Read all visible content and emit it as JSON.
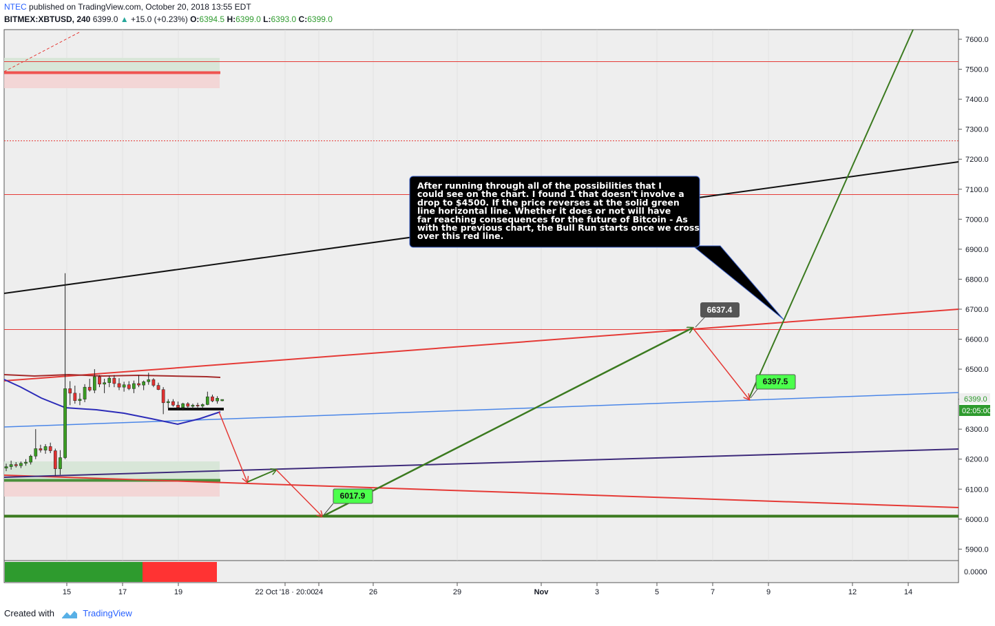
{
  "header": {
    "author": "NTEC",
    "published": "published on TradingView.com, October 20, 2018 13:55 EDT",
    "symbol": "BITMEX:XBTUSD, 240",
    "last": "6399.0",
    "change": "+15.0 (+0.23%)",
    "o_label": "O:",
    "o_value": "6394.5",
    "h_label": "H:",
    "h_value": "6399.0",
    "l_label": "L:",
    "l_value": "6393.0",
    "c_label": "C:",
    "c_value": "6399.0"
  },
  "footer": {
    "created_with": "Created with",
    "brand": "TradingView"
  },
  "chart_data": {
    "type": "candlestick",
    "price_axis": {
      "ticks": [
        7600,
        7500,
        7400,
        7300,
        7200,
        7100,
        7000,
        6900,
        6800,
        6700,
        6600,
        6500,
        6400,
        6300,
        6200,
        6100,
        6000,
        5900
      ],
      "tick_labels": [
        "7600.0",
        "7500.0",
        "7400.0",
        "7300.0",
        "7200.0",
        "7100.0",
        "7000.0",
        "6900.0",
        "6800.0",
        "6700.0",
        "6600.0",
        "6500.0",
        "6400.0",
        "6300.0",
        "6200.0",
        "6100.0",
        "6000.0",
        "5900.0"
      ],
      "range": [
        5860,
        7620
      ],
      "last_price_label": "6399.0",
      "countdown_label": "02:05:00",
      "indicator_label": "0.0000"
    },
    "time_axis": {
      "labels": [
        "15",
        "17",
        "19",
        "22 Oct '18 · 20:00",
        "24",
        "26",
        "29",
        "Nov",
        "3",
        "5",
        "7",
        "9",
        "12",
        "14"
      ]
    },
    "candles": [
      {
        "o": 6170,
        "h": 6185,
        "l": 6160,
        "c": 6175
      },
      {
        "o": 6175,
        "h": 6195,
        "l": 6165,
        "c": 6182
      },
      {
        "o": 6182,
        "h": 6190,
        "l": 6172,
        "c": 6178
      },
      {
        "o": 6178,
        "h": 6192,
        "l": 6170,
        "c": 6186
      },
      {
        "o": 6186,
        "h": 6200,
        "l": 6178,
        "c": 6190
      },
      {
        "o": 6190,
        "h": 6215,
        "l": 6182,
        "c": 6210
      },
      {
        "o": 6210,
        "h": 6300,
        "l": 6200,
        "c": 6235
      },
      {
        "o": 6235,
        "h": 6248,
        "l": 6222,
        "c": 6230
      },
      {
        "o": 6230,
        "h": 6250,
        "l": 6218,
        "c": 6242
      },
      {
        "o": 6242,
        "h": 6255,
        "l": 6220,
        "c": 6228
      },
      {
        "o": 6228,
        "h": 6235,
        "l": 6145,
        "c": 6168
      },
      {
        "o": 6168,
        "h": 6230,
        "l": 6148,
        "c": 6205
      },
      {
        "o": 6205,
        "h": 6820,
        "l": 6200,
        "c": 6435
      },
      {
        "o": 6435,
        "h": 6460,
        "l": 6380,
        "c": 6420
      },
      {
        "o": 6420,
        "h": 6445,
        "l": 6385,
        "c": 6395
      },
      {
        "o": 6395,
        "h": 6420,
        "l": 6380,
        "c": 6400
      },
      {
        "o": 6400,
        "h": 6450,
        "l": 6390,
        "c": 6440
      },
      {
        "o": 6440,
        "h": 6468,
        "l": 6425,
        "c": 6430
      },
      {
        "o": 6430,
        "h": 6500,
        "l": 6420,
        "c": 6475
      },
      {
        "o": 6475,
        "h": 6480,
        "l": 6440,
        "c": 6450
      },
      {
        "o": 6450,
        "h": 6468,
        "l": 6420,
        "c": 6455
      },
      {
        "o": 6455,
        "h": 6478,
        "l": 6440,
        "c": 6470
      },
      {
        "o": 6470,
        "h": 6480,
        "l": 6440,
        "c": 6452
      },
      {
        "o": 6452,
        "h": 6470,
        "l": 6430,
        "c": 6440
      },
      {
        "o": 6440,
        "h": 6458,
        "l": 6425,
        "c": 6448
      },
      {
        "o": 6448,
        "h": 6460,
        "l": 6430,
        "c": 6435
      },
      {
        "o": 6435,
        "h": 6462,
        "l": 6420,
        "c": 6452
      },
      {
        "o": 6452,
        "h": 6480,
        "l": 6440,
        "c": 6447
      },
      {
        "o": 6447,
        "h": 6462,
        "l": 6430,
        "c": 6458
      },
      {
        "o": 6458,
        "h": 6488,
        "l": 6448,
        "c": 6465
      },
      {
        "o": 6465,
        "h": 6470,
        "l": 6440,
        "c": 6446
      },
      {
        "o": 6446,
        "h": 6455,
        "l": 6430,
        "c": 6432
      },
      {
        "o": 6432,
        "h": 6440,
        "l": 6350,
        "c": 6388
      },
      {
        "o": 6388,
        "h": 6400,
        "l": 6370,
        "c": 6392
      },
      {
        "o": 6392,
        "h": 6400,
        "l": 6375,
        "c": 6380
      },
      {
        "o": 6380,
        "h": 6392,
        "l": 6365,
        "c": 6372
      },
      {
        "o": 6372,
        "h": 6388,
        "l": 6362,
        "c": 6385
      },
      {
        "o": 6385,
        "h": 6390,
        "l": 6368,
        "c": 6376
      },
      {
        "o": 6376,
        "h": 6385,
        "l": 6368,
        "c": 6380
      },
      {
        "o": 6380,
        "h": 6388,
        "l": 6372,
        "c": 6377
      },
      {
        "o": 6377,
        "h": 6386,
        "l": 6370,
        "c": 6382
      },
      {
        "o": 6382,
        "h": 6425,
        "l": 6380,
        "c": 6408
      },
      {
        "o": 6408,
        "h": 6415,
        "l": 6390,
        "c": 6394
      },
      {
        "o": 6394,
        "h": 6410,
        "l": 6385,
        "c": 6403
      },
      {
        "o": 6394.5,
        "h": 6399,
        "l": 6393,
        "c": 6399
      }
    ],
    "projection_labels": [
      "6637.4",
      "6397.5",
      "6017.9"
    ],
    "annotation": "After running through all of the possibilities that I could see on the chart.  I found 1 that doesn't involve a drop to $4500.  If the price reverses at the solid green line horizontal line.  Whether it does or not will have far reaching consequences for the future of Bitcoin - As with the previous chart, the Bull Run starts once we cross over this red line.",
    "colors": {
      "up": "#3a9d23",
      "down": "#e03131",
      "bg": "#eeeeee",
      "red_line": "#e53935",
      "green_line": "#3b7a1f",
      "blue_line": "#4a86e8",
      "navy_line": "#2b2bb8",
      "purple_line": "#3d2a7a",
      "label_dark": "#555555",
      "label_green": "#4cff4c"
    }
  }
}
